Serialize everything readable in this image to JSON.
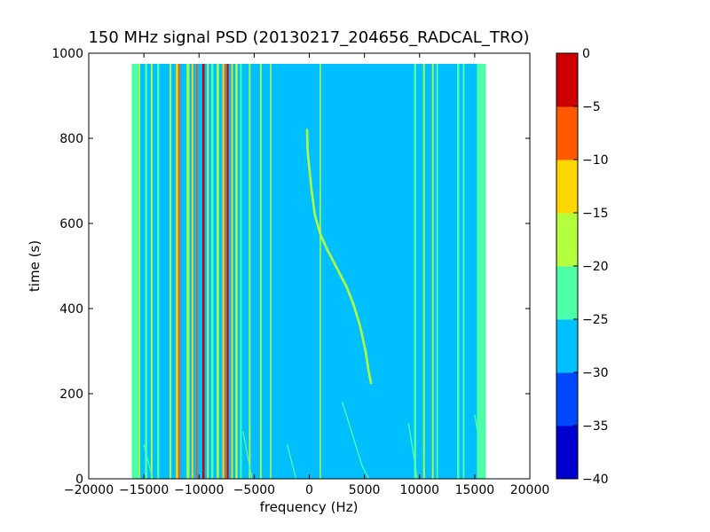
{
  "chart_data": {
    "type": "heatmap",
    "title": "150 MHz signal PSD (20130217_204656_RADCAL_TRO)",
    "xlabel": "frequency (Hz)",
    "ylabel": "time (s)",
    "xlim": [
      -20000,
      20000
    ],
    "ylim": [
      0,
      1000
    ],
    "x_ticks": [
      -20000,
      -15000,
      -10000,
      -5000,
      0,
      5000,
      10000,
      15000,
      20000
    ],
    "y_ticks": [
      0,
      200,
      400,
      600,
      800,
      1000
    ],
    "data_extent": {
      "x": [
        -16000,
        16000
      ],
      "y": [
        0,
        975
      ]
    },
    "background_level": -27.5,
    "outer_band_level": -22.5,
    "colorbar": {
      "levels": [
        -40,
        -35,
        -30,
        -25,
        -20,
        -15,
        -10,
        -5,
        0
      ],
      "colors": [
        "#0000cc",
        "#0047ff",
        "#00bfff",
        "#4dffa6",
        "#b3ff3d",
        "#ffd700",
        "#ff5a00",
        "#cc0000"
      ],
      "tick_labels": [
        "0",
        "−5",
        "−10",
        "−15",
        "−20",
        "−25",
        "−30",
        "−35",
        "−40"
      ]
    },
    "steady_lines": [
      {
        "freq": -16000,
        "width": 200,
        "level": -22.5
      },
      {
        "freq": -15400,
        "width": 150,
        "level": -17.5
      },
      {
        "freq": -14800,
        "width": 200,
        "level": -22.5
      },
      {
        "freq": -14300,
        "width": 150,
        "level": -17.5
      },
      {
        "freq": -13700,
        "width": 200,
        "level": -22.5
      },
      {
        "freq": -12600,
        "width": 150,
        "level": -17.5
      },
      {
        "freq": -12000,
        "width": 200,
        "level": -12.5
      },
      {
        "freq": -11800,
        "width": 150,
        "level": -7.5
      },
      {
        "freq": -11000,
        "width": 250,
        "level": -17.5
      },
      {
        "freq": -10600,
        "width": 150,
        "level": -12.5
      },
      {
        "freq": -10200,
        "width": 150,
        "level": -7.5
      },
      {
        "freq": -9600,
        "width": 200,
        "level": -2.5
      },
      {
        "freq": -9200,
        "width": 150,
        "level": -17.5
      },
      {
        "freq": -8800,
        "width": 200,
        "level": -22.5
      },
      {
        "freq": -8300,
        "width": 200,
        "level": -17.5
      },
      {
        "freq": -7800,
        "width": 150,
        "level": -12.5
      },
      {
        "freq": -7600,
        "width": 150,
        "level": -7.5
      },
      {
        "freq": -7400,
        "width": 150,
        "level": -2.5
      },
      {
        "freq": -7000,
        "width": 150,
        "level": -12.5
      },
      {
        "freq": -6600,
        "width": 200,
        "level": -17.5
      },
      {
        "freq": -6200,
        "width": 150,
        "level": -22.5
      },
      {
        "freq": -5400,
        "width": 150,
        "level": -17.5
      },
      {
        "freq": -4400,
        "width": 150,
        "level": -17.5
      },
      {
        "freq": -3500,
        "width": 120,
        "level": -17.5
      },
      {
        "freq": 1000,
        "width": 120,
        "level": -17.5
      },
      {
        "freq": 9600,
        "width": 200,
        "level": -22.5
      },
      {
        "freq": 10400,
        "width": 150,
        "level": -17.5
      },
      {
        "freq": 11200,
        "width": 150,
        "level": -17.5
      },
      {
        "freq": 11600,
        "width": 150,
        "level": -22.5
      },
      {
        "freq": 13500,
        "width": 200,
        "level": -22.5
      },
      {
        "freq": 14000,
        "width": 150,
        "level": -22.5
      }
    ],
    "doppler_trace": {
      "level": -17.5,
      "points": [
        [
          -200,
          820
        ],
        [
          -150,
          770
        ],
        [
          0,
          730
        ],
        [
          200,
          680
        ],
        [
          500,
          620
        ],
        [
          1000,
          575
        ],
        [
          1600,
          540
        ],
        [
          2200,
          510
        ],
        [
          2800,
          480
        ],
        [
          3400,
          450
        ],
        [
          4000,
          410
        ],
        [
          4600,
          360
        ],
        [
          5100,
          300
        ],
        [
          5400,
          250
        ],
        [
          5600,
          225
        ]
      ]
    },
    "faint_traces": [
      {
        "level": -22.5,
        "points": [
          [
            -15000,
            80
          ],
          [
            -14200,
            0
          ]
        ]
      },
      {
        "level": -22.5,
        "points": [
          [
            -6000,
            110
          ],
          [
            -5200,
            0
          ]
        ]
      },
      {
        "level": -22.5,
        "points": [
          [
            -2000,
            80
          ],
          [
            -1200,
            0
          ]
        ]
      },
      {
        "level": -22.5,
        "points": [
          [
            3000,
            180
          ],
          [
            4800,
            30
          ],
          [
            5400,
            0
          ]
        ]
      },
      {
        "level": -22.5,
        "points": [
          [
            9000,
            130
          ],
          [
            9800,
            0
          ]
        ]
      },
      {
        "level": -22.5,
        "points": [
          [
            15000,
            150
          ],
          [
            15800,
            30
          ]
        ]
      }
    ]
  }
}
